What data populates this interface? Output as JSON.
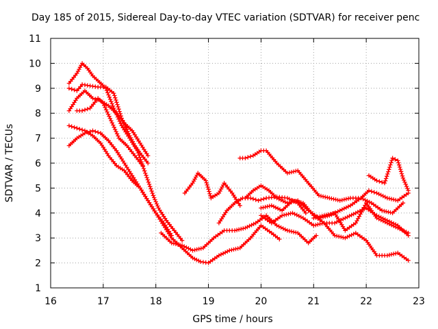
{
  "chart_data": {
    "type": "line",
    "title": "Day 185 of 2015, Sidereal Day-to-day VTEC variation (SDTVAR) for receiver penc",
    "xlabel": "GPS time / hours",
    "ylabel": "SDTVAR / TECUs",
    "xlim": [
      16,
      23
    ],
    "ylim": [
      1,
      11
    ],
    "xticks": [
      "16",
      "17",
      "18",
      "19",
      "20",
      "21",
      "22",
      "23"
    ],
    "yticks": [
      "1",
      "2",
      "3",
      "4",
      "5",
      "6",
      "7",
      "8",
      "9",
      "10",
      "11"
    ],
    "grid": true,
    "marker": "plus",
    "color": "#ff0000",
    "series": [
      {
        "name": "s1",
        "x": [
          16.35,
          16.5,
          16.6,
          16.7,
          16.8,
          16.9,
          17.05,
          17.2,
          17.35,
          17.5,
          17.65,
          17.8,
          17.95,
          18.05,
          18.2,
          18.35,
          18.5
        ],
        "y": [
          9.2,
          9.6,
          10.0,
          9.8,
          9.5,
          9.3,
          9.0,
          8.2,
          7.5,
          7.0,
          6.5,
          5.6,
          4.7,
          4.2,
          3.7,
          3.3,
          2.9
        ]
      },
      {
        "name": "s2",
        "x": [
          16.35,
          16.5,
          16.6,
          16.75,
          16.9,
          17.05,
          17.2,
          17.35,
          17.5,
          17.6,
          17.7,
          17.85
        ],
        "y": [
          9.0,
          8.9,
          9.15,
          9.1,
          9.05,
          9.05,
          8.8,
          7.8,
          7.1,
          6.7,
          6.4,
          6.0
        ]
      },
      {
        "name": "s3",
        "x": [
          16.35,
          16.5,
          16.65,
          16.8,
          16.95,
          17.1,
          17.25,
          17.4,
          17.55,
          17.7,
          17.85
        ],
        "y": [
          8.1,
          8.6,
          8.9,
          8.6,
          8.5,
          8.3,
          8.0,
          7.6,
          7.3,
          6.8,
          6.3
        ]
      },
      {
        "name": "s4",
        "x": [
          16.5,
          16.6,
          16.75,
          16.9,
          17.0,
          17.15,
          17.3,
          17.45,
          17.6,
          17.75
        ],
        "y": [
          8.1,
          8.1,
          8.2,
          8.6,
          8.4,
          7.7,
          7.0,
          6.7,
          6.3,
          5.9
        ]
      },
      {
        "name": "s5",
        "x": [
          16.35,
          16.5,
          16.65,
          16.8,
          16.95,
          17.1,
          17.25,
          17.4,
          17.55,
          17.7,
          17.85,
          18.0,
          18.15,
          18.3
        ],
        "y": [
          7.5,
          7.4,
          7.3,
          7.1,
          6.8,
          6.3,
          5.9,
          5.7,
          5.3,
          5.0,
          4.5,
          4.0,
          3.6,
          3.1
        ]
      },
      {
        "name": "s6",
        "x": [
          16.35,
          16.5,
          16.65,
          16.8,
          16.95,
          17.1,
          17.25,
          17.4,
          17.55,
          17.7,
          17.85,
          18.0,
          18.15,
          18.3,
          18.5,
          18.7,
          18.85,
          19.0,
          19.2,
          19.4,
          19.6,
          19.8,
          20.0,
          20.2,
          20.35
        ],
        "y": [
          6.7,
          7.0,
          7.2,
          7.3,
          7.2,
          6.9,
          6.5,
          6.0,
          5.5,
          5.0,
          4.5,
          4.0,
          3.5,
          3.0,
          2.6,
          2.2,
          2.05,
          2.0,
          2.3,
          2.5,
          2.6,
          3.0,
          3.5,
          3.2,
          2.95
        ]
      },
      {
        "name": "s7",
        "x": [
          18.1,
          18.3,
          18.5,
          18.7,
          18.9,
          19.1,
          19.3,
          19.5,
          19.7,
          19.9,
          20.1,
          20.3,
          20.5,
          20.7,
          20.9,
          21.05
        ],
        "y": [
          3.2,
          2.8,
          2.7,
          2.5,
          2.6,
          3.0,
          3.3,
          3.3,
          3.4,
          3.6,
          3.9,
          3.5,
          3.3,
          3.2,
          2.8,
          3.1
        ]
      },
      {
        "name": "s8",
        "x": [
          18.55,
          18.7,
          18.8,
          18.95,
          19.05,
          19.2,
          19.3,
          19.45,
          19.6
        ],
        "y": [
          4.8,
          5.2,
          5.6,
          5.3,
          4.6,
          4.8,
          5.2,
          4.8,
          4.3
        ]
      },
      {
        "name": "s9",
        "x": [
          19.2,
          19.35,
          19.5,
          19.65,
          19.8,
          19.95,
          20.1,
          20.3,
          20.5,
          20.7,
          20.85
        ],
        "y": [
          3.6,
          4.1,
          4.4,
          4.6,
          4.6,
          4.5,
          4.6,
          4.65,
          4.6,
          4.4,
          4.0
        ]
      },
      {
        "name": "s10",
        "x": [
          19.6,
          19.7,
          19.85,
          20.0,
          20.1,
          20.3,
          20.5,
          20.7,
          20.9,
          21.1,
          21.3,
          21.5,
          21.7,
          21.9,
          22.05,
          22.2,
          22.4,
          22.6,
          22.8
        ],
        "y": [
          6.2,
          6.2,
          6.3,
          6.5,
          6.5,
          6.0,
          5.6,
          5.7,
          5.2,
          4.7,
          4.6,
          4.5,
          4.6,
          4.6,
          4.9,
          4.8,
          4.6,
          4.5,
          4.8
        ]
      },
      {
        "name": "s11",
        "x": [
          19.7,
          19.85,
          20.0,
          20.15,
          20.3,
          20.5,
          20.7,
          20.9,
          21.1,
          21.3,
          21.5,
          21.7,
          21.9,
          22.1,
          22.3,
          22.5,
          22.7
        ],
        "y": [
          4.6,
          4.9,
          5.1,
          4.9,
          4.6,
          4.4,
          4.5,
          4.1,
          3.8,
          3.9,
          4.1,
          4.3,
          4.6,
          4.4,
          4.1,
          4.0,
          4.4
        ]
      },
      {
        "name": "s12",
        "x": [
          20.0,
          20.2,
          20.4,
          20.6,
          20.8,
          21.0,
          21.2,
          21.4,
          21.6,
          21.8,
          22.0,
          22.2,
          22.4,
          22.6,
          22.8
        ],
        "y": [
          4.2,
          4.3,
          4.1,
          4.5,
          4.4,
          3.9,
          3.6,
          3.6,
          3.8,
          4.0,
          4.2,
          3.9,
          3.7,
          3.5,
          3.1
        ]
      },
      {
        "name": "s13",
        "x": [
          20.0,
          20.2,
          20.4,
          20.6,
          20.8,
          21.0,
          21.2,
          21.4,
          21.6,
          21.8,
          22.0,
          22.2,
          22.4,
          22.6,
          22.8
        ],
        "y": [
          3.9,
          3.6,
          3.9,
          4.0,
          3.8,
          3.5,
          3.6,
          3.1,
          3.0,
          3.2,
          2.9,
          2.3,
          2.3,
          2.4,
          2.1
        ]
      },
      {
        "name": "s14",
        "x": [
          21.0,
          21.2,
          21.4,
          21.6,
          21.8,
          22.0,
          22.2,
          22.4,
          22.6,
          22.8
        ],
        "y": [
          3.8,
          3.9,
          4.0,
          3.3,
          3.6,
          4.4,
          3.8,
          3.6,
          3.4,
          3.2
        ]
      },
      {
        "name": "s15",
        "x": [
          22.05,
          22.2,
          22.35,
          22.5,
          22.6,
          22.7,
          22.8
        ],
        "y": [
          5.5,
          5.3,
          5.2,
          6.2,
          6.1,
          5.4,
          4.9
        ]
      }
    ]
  }
}
